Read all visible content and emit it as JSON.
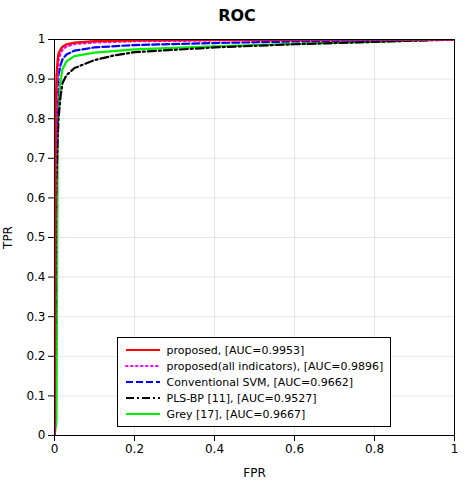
{
  "chart_data": {
    "type": "line",
    "title": "ROC",
    "xlabel": "FPR",
    "ylabel": "TPR",
    "xlim": [
      0,
      1
    ],
    "ylim": [
      0,
      1
    ],
    "xticks": [
      0,
      0.2,
      0.4,
      0.6,
      0.8,
      1
    ],
    "yticks": [
      0,
      0.1,
      0.2,
      0.3,
      0.4,
      0.5,
      0.6,
      0.7,
      0.8,
      0.9,
      1
    ],
    "grid": true,
    "legend": "lower center",
    "series": [
      {
        "name": "proposed, [AUC=0.9953]",
        "color": "#ff0000",
        "line_style": "solid",
        "x": [
          0,
          0.003,
          0.005,
          0.008,
          0.01,
          0.015,
          0.02,
          0.03,
          0.05,
          0.1,
          0.2,
          0.4,
          0.6,
          0.8,
          1.0
        ],
        "values": [
          0,
          0.82,
          0.91,
          0.95,
          0.965,
          0.975,
          0.982,
          0.988,
          0.992,
          0.996,
          0.998,
          0.999,
          0.999,
          1.0,
          1.0
        ]
      },
      {
        "name": "proposed(all indicators), [AUC=0.9896]",
        "color": "#ff00ff",
        "line_style": "dotted",
        "x": [
          0,
          0.003,
          0.005,
          0.008,
          0.01,
          0.015,
          0.02,
          0.03,
          0.05,
          0.1,
          0.2,
          0.4,
          0.6,
          0.8,
          1.0
        ],
        "values": [
          0,
          0.7,
          0.84,
          0.92,
          0.95,
          0.965,
          0.975,
          0.983,
          0.989,
          0.993,
          0.996,
          0.998,
          0.999,
          1.0,
          1.0
        ]
      },
      {
        "name": "Conventional SVM, [AUC=0.9662]",
        "color": "#0000ff",
        "line_style": "dashed",
        "x": [
          0,
          0.003,
          0.005,
          0.008,
          0.01,
          0.015,
          0.02,
          0.03,
          0.05,
          0.1,
          0.2,
          0.4,
          0.6,
          0.8,
          1.0
        ],
        "values": [
          0,
          0.6,
          0.78,
          0.87,
          0.91,
          0.935,
          0.95,
          0.962,
          0.972,
          0.98,
          0.986,
          0.991,
          0.995,
          0.998,
          1.0
        ]
      },
      {
        "name": "PLS-BP [11], [AUC=0.9527]",
        "color": "#000000",
        "line_style": "dashdot",
        "x": [
          0,
          0.003,
          0.005,
          0.008,
          0.01,
          0.015,
          0.02,
          0.03,
          0.05,
          0.08,
          0.1,
          0.15,
          0.2,
          0.4,
          0.6,
          0.8,
          1.0
        ],
        "values": [
          0,
          0.5,
          0.65,
          0.75,
          0.8,
          0.855,
          0.89,
          0.91,
          0.928,
          0.94,
          0.948,
          0.96,
          0.968,
          0.98,
          0.988,
          0.994,
          1.0
        ]
      },
      {
        "name": "Grey [17], [AUC=0.9667]",
        "color": "#00ee00",
        "line_style": "solid",
        "x": [
          0,
          0.003,
          0.005,
          0.008,
          0.01,
          0.015,
          0.02,
          0.03,
          0.05,
          0.1,
          0.2,
          0.4,
          0.6,
          0.8,
          1.0
        ],
        "values": [
          0,
          0.02,
          0.04,
          0.75,
          0.84,
          0.895,
          0.925,
          0.945,
          0.958,
          0.967,
          0.975,
          0.983,
          0.989,
          0.994,
          1.0
        ]
      }
    ]
  }
}
